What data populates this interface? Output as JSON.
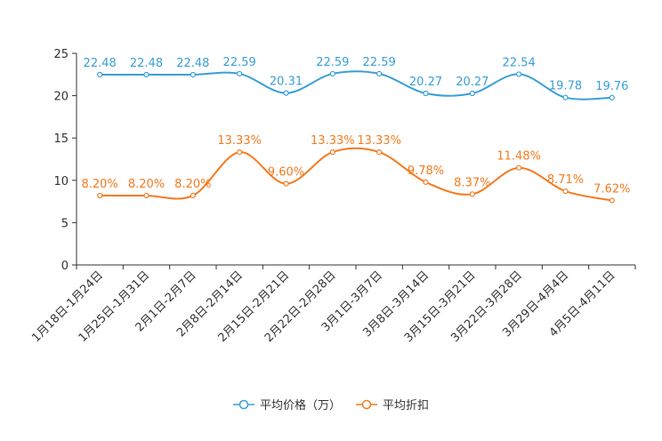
{
  "chart_data": {
    "type": "line",
    "categories": [
      "1月18日-1月24日",
      "1月25日-1月31日",
      "2月1日-2月7日",
      "2月8日-2月14日",
      "2月15日-2月21日",
      "2月22日-2月28日",
      "3月1日-3月7日",
      "3月8日-3月14日",
      "3月15日-3月21日",
      "3月22日-3月28日",
      "3月29日-4月4日",
      "4月5日-4月11日"
    ],
    "series": [
      {
        "name": "平均价格（万）",
        "color": "#3a9fd6",
        "values": [
          22.48,
          22.48,
          22.48,
          22.59,
          20.31,
          22.59,
          22.59,
          20.27,
          20.27,
          22.54,
          19.78,
          19.76
        ],
        "labels": [
          "22.48",
          "22.48",
          "22.48",
          "22.59",
          "20.31",
          "22.59",
          "22.59",
          "20.27",
          "20.27",
          "22.54",
          "19.78",
          "19.76"
        ]
      },
      {
        "name": "平均折扣",
        "color": "#f47b20",
        "values": [
          8.2,
          8.2,
          8.2,
          13.33,
          9.6,
          13.33,
          13.33,
          9.78,
          8.37,
          11.48,
          8.71,
          7.62
        ],
        "labels": [
          "8.20%",
          "8.20%",
          "8.20%",
          "13.33%",
          "9.60%",
          "13.33%",
          "13.33%",
          "9.78%",
          "8.37%",
          "11.48%",
          "8.71%",
          "7.62%"
        ]
      }
    ],
    "ylim": [
      0,
      25
    ],
    "yticks": [
      0,
      5,
      10,
      15,
      20,
      25
    ],
    "legend": "bottom-center",
    "grid": false
  }
}
